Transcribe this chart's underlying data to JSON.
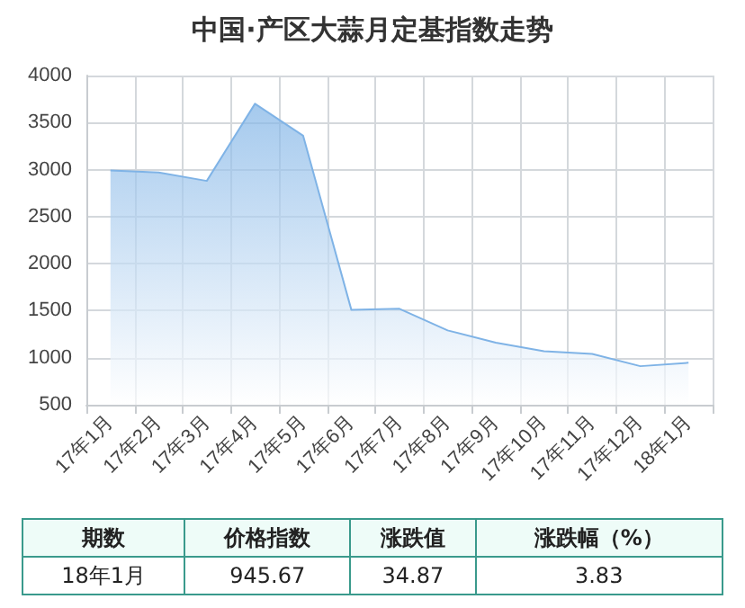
{
  "chart_data": {
    "type": "area",
    "title": "中国·产区大蒜月定基指数走势",
    "categories": [
      "17年1月",
      "17年2月",
      "17年3月",
      "17年4月",
      "17年5月",
      "17年6月",
      "17年7月",
      "17年8月",
      "17年9月",
      "17年10月",
      "17年11月",
      "17年12月",
      "18年1月"
    ],
    "series": [
      {
        "color": "#7fb3e6",
        "values": [
          2990,
          2970,
          2880,
          3700,
          3360,
          1510,
          1520,
          1290,
          1160,
          1070,
          1040,
          910,
          946
        ]
      }
    ],
    "ylim": [
      500,
      4000
    ],
    "yticks": [
      500,
      1000,
      1500,
      2000,
      2500,
      3000,
      3500,
      4000
    ],
    "grid": true,
    "marker": "none",
    "annotations": [
      "期数",
      "价格指数",
      "涨跌值",
      "涨跌幅（%）",
      "18年1月",
      "945.67",
      "34.87",
      "3.83"
    ]
  }
}
